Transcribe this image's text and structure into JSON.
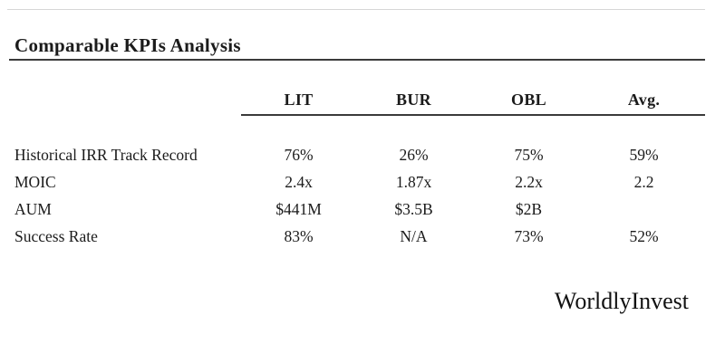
{
  "header": {
    "title": "Comparable KPIs Analysis"
  },
  "table": {
    "columns": [
      "LIT",
      "BUR",
      "OBL",
      "Avg."
    ],
    "rows": [
      {
        "label": "Historical IRR Track Record",
        "values": [
          "76%",
          "26%",
          "75%",
          "59%"
        ]
      },
      {
        "label": "MOIC",
        "values": [
          "2.4x",
          "1.87x",
          "2.2x",
          "2.2"
        ]
      },
      {
        "label": "AUM",
        "values": [
          "$441M",
          "$3.5B",
          "$2B",
          ""
        ]
      },
      {
        "label": "Success Rate",
        "values": [
          "83%",
          "N/A",
          "73%",
          "52%"
        ]
      }
    ]
  },
  "footer": {
    "watermark": "WorldlyInvest"
  },
  "colors": {
    "background": "#ffffff",
    "text": "#1b1b1b",
    "rule_dark": "#3a3a3a",
    "rule_light": "#d6d6d6"
  }
}
